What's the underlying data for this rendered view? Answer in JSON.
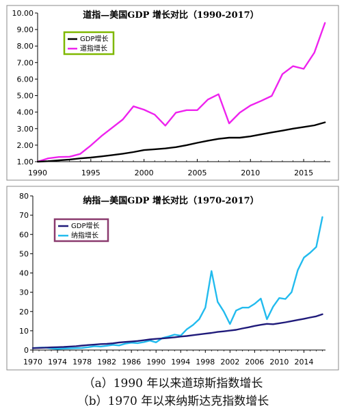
{
  "captions": [
    "（a）1990 年以来道琼斯指数增长",
    "（b）1970 年以来纳斯达克指数增长"
  ],
  "chart_data": [
    {
      "type": "line",
      "title": "道指—美国GDP 增长对比（1990-2017）",
      "xlabel": "",
      "ylabel": "",
      "xlim": [
        1990,
        2017.5
      ],
      "ylim": [
        1.0,
        10.0
      ],
      "xticks": [
        1990,
        1995,
        2000,
        2005,
        2010,
        2015
      ],
      "yticks": [
        "1.00",
        "2.00",
        "3.00",
        "4.00",
        "5.00",
        "6.00",
        "7.00",
        "8.00",
        "9.00",
        "10.00"
      ],
      "legend_position": "top-left",
      "grid": false,
      "series": [
        {
          "name": "GDP增长",
          "color": "#000000",
          "x": [
            1990,
            1991,
            1992,
            1993,
            1994,
            1995,
            1996,
            1997,
            1998,
            1999,
            2000,
            2001,
            2002,
            2003,
            2004,
            2005,
            2006,
            2007,
            2008,
            2009,
            2010,
            2011,
            2012,
            2013,
            2014,
            2015,
            2016,
            2017
          ],
          "y": [
            1.0,
            1.03,
            1.08,
            1.13,
            1.2,
            1.25,
            1.32,
            1.4,
            1.48,
            1.58,
            1.7,
            1.75,
            1.8,
            1.88,
            2.0,
            2.14,
            2.27,
            2.38,
            2.45,
            2.45,
            2.53,
            2.65,
            2.77,
            2.88,
            3.0,
            3.1,
            3.2,
            3.38
          ]
        },
        {
          "name": "道指增长",
          "color": "#ee22ee",
          "x": [
            1990,
            1991,
            1992,
            1993,
            1994,
            1995,
            1996,
            1997,
            1998,
            1999,
            2000,
            2001,
            2002,
            2003,
            2004,
            2005,
            2006,
            2007,
            2008,
            2009,
            2010,
            2011,
            2012,
            2013,
            2014,
            2015,
            2016,
            2017
          ],
          "y": [
            1.0,
            1.2,
            1.28,
            1.3,
            1.47,
            1.98,
            2.55,
            3.05,
            3.55,
            4.35,
            4.15,
            3.85,
            3.18,
            3.97,
            4.12,
            4.12,
            4.76,
            5.08,
            3.32,
            3.97,
            4.4,
            4.68,
            4.98,
            6.3,
            6.78,
            6.62,
            7.6,
            9.4
          ]
        }
      ]
    },
    {
      "type": "line",
      "title": "纳指—美国GDP 增长对比（1970-2017）",
      "xlabel": "",
      "ylabel": "",
      "xlim": [
        1970,
        2017.5
      ],
      "ylim": [
        0,
        80
      ],
      "xticks": [
        1970,
        1974,
        1978,
        1982,
        1986,
        1990,
        1994,
        1998,
        2002,
        2006,
        2010,
        2014
      ],
      "yticks": [
        "0",
        "10",
        "20",
        "30",
        "40",
        "50",
        "60",
        "70",
        "80"
      ],
      "legend_position": "top-left",
      "grid": false,
      "series": [
        {
          "name": "GDP增长",
          "color": "#1f1a7a",
          "x": [
            1970,
            1971,
            1972,
            1973,
            1974,
            1975,
            1976,
            1977,
            1978,
            1979,
            1980,
            1981,
            1982,
            1983,
            1984,
            1985,
            1986,
            1987,
            1988,
            1989,
            1990,
            1991,
            1992,
            1993,
            1994,
            1995,
            1996,
            1997,
            1998,
            1999,
            2000,
            2001,
            2002,
            2003,
            2004,
            2005,
            2006,
            2007,
            2008,
            2009,
            2010,
            2011,
            2012,
            2013,
            2014,
            2015,
            2016,
            2017
          ],
          "y": [
            1.0,
            1.1,
            1.2,
            1.4,
            1.5,
            1.6,
            1.8,
            2.0,
            2.3,
            2.6,
            2.8,
            3.1,
            3.2,
            3.5,
            3.9,
            4.2,
            4.4,
            4.7,
            5.1,
            5.5,
            5.8,
            6.0,
            6.3,
            6.6,
            7.0,
            7.3,
            7.7,
            8.1,
            8.5,
            8.9,
            9.4,
            9.7,
            10.1,
            10.5,
            11.2,
            11.8,
            12.5,
            13.1,
            13.6,
            13.4,
            13.9,
            14.4,
            15.0,
            15.6,
            16.2,
            16.9,
            17.5,
            18.6
          ]
        },
        {
          "name": "纳指增长",
          "color": "#22bbee",
          "x": [
            1970,
            1971,
            1972,
            1973,
            1974,
            1975,
            1976,
            1977,
            1978,
            1979,
            1980,
            1981,
            1982,
            1983,
            1984,
            1985,
            1986,
            1987,
            1988,
            1989,
            1990,
            1991,
            1992,
            1993,
            1994,
            1995,
            1996,
            1997,
            1998,
            1999,
            2000,
            2001,
            2002,
            2003,
            2004,
            2005,
            2006,
            2007,
            2008,
            2009,
            2010,
            2011,
            2012,
            2013,
            2014,
            2015,
            2016,
            2017
          ],
          "y": [
            1.0,
            1.2,
            1.3,
            0.9,
            0.6,
            0.8,
            0.9,
            1.0,
            1.1,
            1.5,
            2.0,
            1.8,
            2.2,
            2.7,
            2.4,
            3.3,
            3.8,
            3.6,
            4.1,
            4.9,
            4.0,
            6.2,
            7.0,
            8.0,
            7.5,
            10.8,
            13.0,
            16.0,
            22.0,
            41.0,
            25.0,
            20.0,
            13.5,
            20.5,
            22.0,
            22.0,
            24.0,
            26.7,
            16.0,
            22.5,
            27.0,
            26.5,
            30.0,
            41.5,
            48.0,
            50.5,
            53.5,
            69.0
          ]
        }
      ]
    }
  ]
}
